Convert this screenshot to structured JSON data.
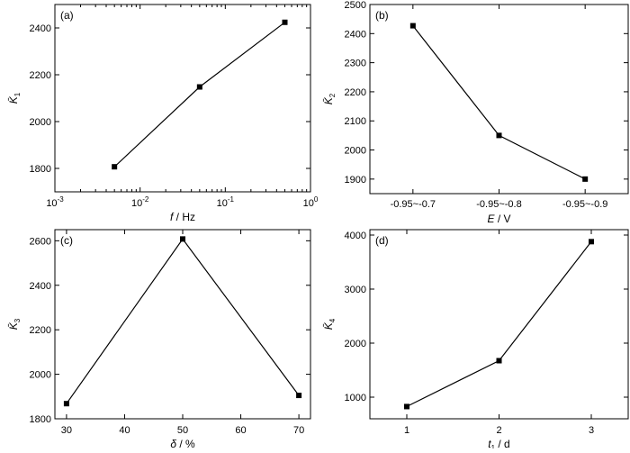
{
  "chart_data": [
    {
      "panel_label": "(a)",
      "type": "line",
      "xscale": "log",
      "xlabel": "f / Hz",
      "ylabel": "K̄1",
      "xlim": [
        0.001,
        1
      ],
      "ylim": [
        1700,
        2500
      ],
      "xticks": [
        0.001,
        0.01,
        0.1,
        1
      ],
      "xtick_labels": [
        "10-3",
        "10-2",
        "10-1",
        "100"
      ],
      "yticks": [
        1800,
        2000,
        2200,
        2400
      ],
      "x": [
        0.005,
        0.05,
        0.5
      ],
      "y": [
        1807,
        2148,
        2424
      ],
      "grid": false
    },
    {
      "panel_label": "(b)",
      "type": "line",
      "xscale": "category",
      "xlabel": "E / V",
      "ylabel": "K̄2",
      "categories": [
        "-0.95~-0.7",
        "-0.95~-0.8",
        "-0.95~-0.9"
      ],
      "xlim": [
        0.5,
        3.5
      ],
      "ylim": [
        1850,
        2500
      ],
      "yticks": [
        1900,
        2000,
        2100,
        2200,
        2300,
        2400,
        2500
      ],
      "x": [
        1,
        2,
        3
      ],
      "y": [
        2427,
        2050,
        1900
      ],
      "grid": false
    },
    {
      "panel_label": "(c)",
      "type": "line",
      "xscale": "linear",
      "xlabel": "δ / %",
      "ylabel": "K̄3",
      "xlim": [
        28,
        72
      ],
      "ylim": [
        1800,
        2650
      ],
      "xticks": [
        30,
        40,
        50,
        60,
        70
      ],
      "yticks": [
        1800,
        2000,
        2200,
        2400,
        2600
      ],
      "x": [
        30,
        50,
        70
      ],
      "y": [
        1868,
        2608,
        1905
      ],
      "grid": false
    },
    {
      "panel_label": "(d)",
      "type": "line",
      "xscale": "linear",
      "xlabel": "t1 / d",
      "ylabel": "K̄4",
      "xlim": [
        0.6,
        3.4
      ],
      "ylim": [
        600,
        4100
      ],
      "xticks": [
        1,
        2,
        3
      ],
      "yticks": [
        1000,
        2000,
        3000,
        4000
      ],
      "x": [
        1,
        2,
        3
      ],
      "y": [
        826,
        1675,
        3878
      ],
      "grid": false
    }
  ]
}
